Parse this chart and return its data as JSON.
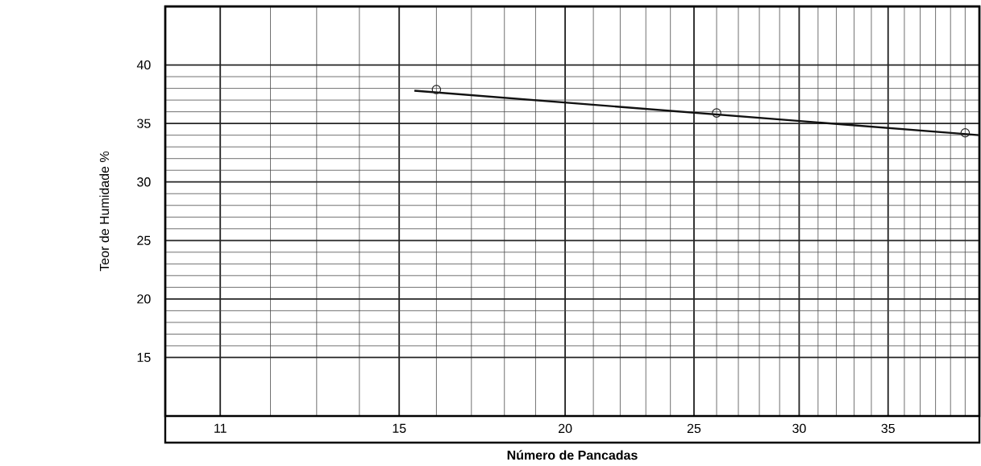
{
  "chart_data": {
    "type": "scatter",
    "xlabel": "Número de Pancadas",
    "ylabel": "Teor de Humidade %",
    "log": "x",
    "xlim": [
      10,
      41
    ],
    "ylim": [
      10,
      45
    ],
    "xticks": [
      11,
      15,
      20,
      25,
      30,
      35
    ],
    "yticks": [
      15,
      20,
      25,
      30,
      35,
      40
    ],
    "grid": true,
    "marker": "circle",
    "series": [
      {
        "x": [
          16,
          26,
          40
        ],
        "values": [
          37.9,
          35.9,
          34.2
        ],
        "color": "#222222"
      },
      {
        "type": "line",
        "x": [
          15.4,
          41
        ],
        "values": [
          37.8,
          34.0
        ],
        "color": "#111111",
        "marker": "none",
        "line_style": "solid"
      }
    ]
  }
}
